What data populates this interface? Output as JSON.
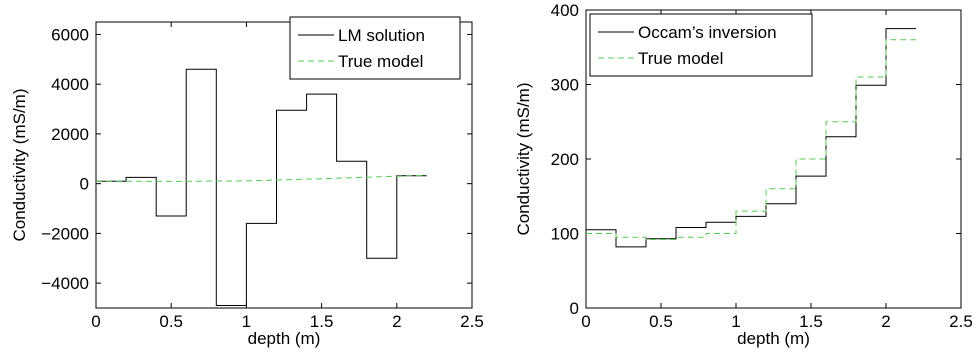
{
  "chart_data": [
    {
      "type": "line",
      "xlabel": "depth (m)",
      "ylabel": "Conductivity (mS/m)",
      "xlim": [
        0,
        2.5
      ],
      "ylim": [
        -5000,
        6500
      ],
      "xticks": [
        0,
        0.5,
        1,
        1.5,
        2,
        2.5
      ],
      "yticks": [
        -4000,
        -2000,
        0,
        2000,
        4000,
        6000
      ],
      "xtick_labels": [
        "0",
        "0.5",
        "1",
        "1.5",
        "2",
        "2.5"
      ],
      "ytick_labels": [
        "−4000",
        "−2000",
        "0",
        "2000",
        "4000",
        "6000"
      ],
      "grid": false,
      "legend_position": "top-right",
      "series": [
        {
          "name": "LM solution",
          "style": "solid",
          "color": "#000000",
          "step": true,
          "edges": [
            0,
            0.2,
            0.4,
            0.6,
            0.8,
            1.0,
            1.2,
            1.4,
            1.6,
            1.8,
            2.0,
            2.2
          ],
          "values": [
            100,
            250,
            -1300,
            4600,
            -4900,
            -1600,
            2950,
            3600,
            900,
            -3000,
            320
          ]
        },
        {
          "name": "True model",
          "style": "dashed",
          "color": "#55cc55",
          "step": false,
          "x": [
            0,
            0.5,
            1.0,
            1.5,
            2.0,
            2.2
          ],
          "values": [
            100,
            90,
            110,
            200,
            300,
            330
          ]
        }
      ]
    },
    {
      "type": "line",
      "xlabel": "depth (m)",
      "ylabel": "Conductivity (mS/m)",
      "xlim": [
        0,
        2.5
      ],
      "ylim": [
        0,
        400
      ],
      "xticks": [
        0,
        0.5,
        1,
        1.5,
        2,
        2.5
      ],
      "yticks": [
        0,
        100,
        200,
        300,
        400
      ],
      "xtick_labels": [
        "0",
        "0.5",
        "1",
        "1.5",
        "2",
        "2.5"
      ],
      "ytick_labels": [
        "0",
        "100",
        "200",
        "300",
        "400"
      ],
      "grid": false,
      "legend_position": "top-left",
      "series": [
        {
          "name": "Occam’s inversion",
          "style": "solid",
          "color": "#000000",
          "step": true,
          "edges": [
            0,
            0.2,
            0.4,
            0.6,
            0.8,
            1.0,
            1.2,
            1.4,
            1.6,
            1.8,
            2.0,
            2.2
          ],
          "values": [
            105,
            82,
            93,
            108,
            115,
            123,
            140,
            177,
            230,
            299,
            375
          ]
        },
        {
          "name": "True model",
          "style": "dashed",
          "color": "#55cc55",
          "step": true,
          "edges": [
            0,
            0.2,
            0.4,
            0.6,
            0.8,
            1.0,
            1.2,
            1.4,
            1.6,
            1.8,
            2.0,
            2.2
          ],
          "values": [
            100,
            95,
            92,
            95,
            100,
            130,
            160,
            200,
            250,
            310,
            360
          ]
        }
      ]
    }
  ]
}
